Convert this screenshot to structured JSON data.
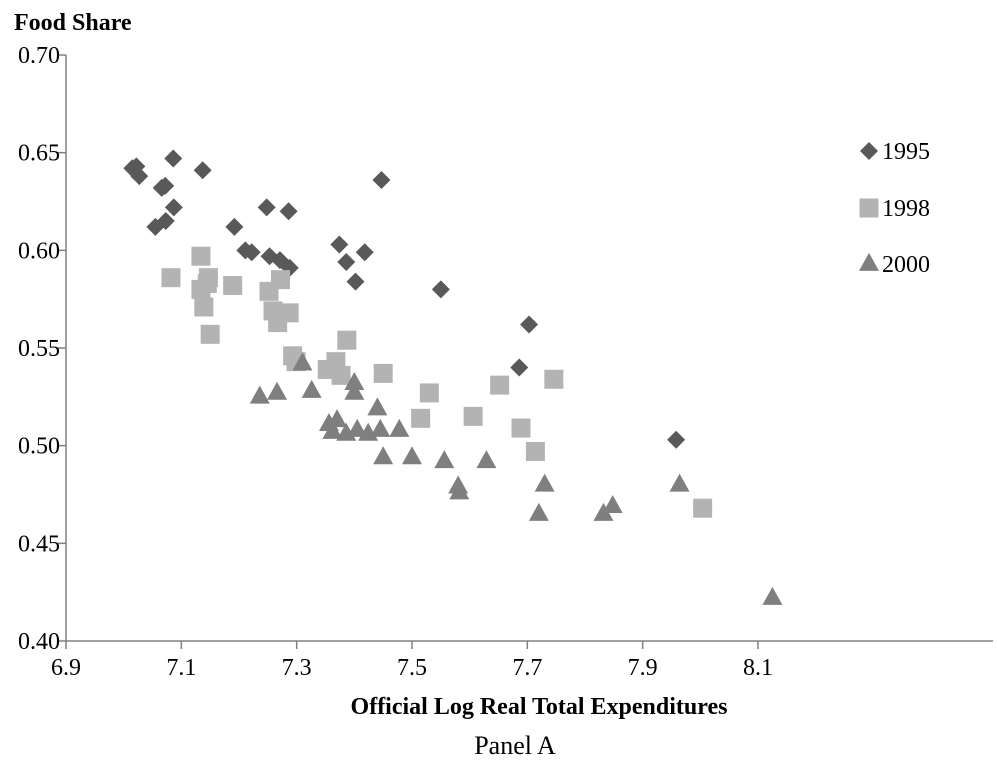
{
  "chart_data": {
    "type": "scatter",
    "ylabel": "Food Share",
    "xlabel": "Official Log Real Total Expenditures",
    "caption": "Panel A",
    "xlim": [
      6.9,
      8.2
    ],
    "ylim": [
      0.4,
      0.7
    ],
    "x_ticks": [
      6.9,
      7.1,
      7.3,
      7.5,
      7.7,
      7.9,
      8.1
    ],
    "x_tick_labels": [
      "6.9",
      "7.1",
      "7.3",
      "7.5",
      "7.7",
      "7.9",
      "8.1"
    ],
    "y_ticks": [
      0.4,
      0.45,
      0.5,
      0.55,
      0.6,
      0.65,
      0.7
    ],
    "y_tick_labels": [
      "0.40",
      "0.45",
      "0.50",
      "0.55",
      "0.60",
      "0.65",
      "0.70"
    ],
    "grid": false,
    "legend_position": "right",
    "series": [
      {
        "name": "1995",
        "marker": "diamond",
        "color": "#595959",
        "points": [
          [
            7.015,
            0.642
          ],
          [
            7.022,
            0.643
          ],
          [
            7.027,
            0.638
          ],
          [
            7.066,
            0.632
          ],
          [
            7.072,
            0.633
          ],
          [
            7.086,
            0.647
          ],
          [
            7.137,
            0.641
          ],
          [
            7.055,
            0.612
          ],
          [
            7.073,
            0.615
          ],
          [
            7.087,
            0.622
          ],
          [
            7.192,
            0.612
          ],
          [
            7.211,
            0.6
          ],
          [
            7.222,
            0.599
          ],
          [
            7.248,
            0.622
          ],
          [
            7.253,
            0.597
          ],
          [
            7.271,
            0.595
          ],
          [
            7.286,
            0.62
          ],
          [
            7.288,
            0.591
          ],
          [
            7.374,
            0.603
          ],
          [
            7.386,
            0.594
          ],
          [
            7.402,
            0.584
          ],
          [
            7.418,
            0.599
          ],
          [
            7.447,
            0.636
          ],
          [
            7.55,
            0.58
          ],
          [
            7.703,
            0.562
          ],
          [
            7.686,
            0.54
          ],
          [
            7.958,
            0.503
          ]
        ]
      },
      {
        "name": "1998",
        "marker": "square",
        "color": "#b3b3b3",
        "points": [
          [
            7.082,
            0.586
          ],
          [
            7.134,
            0.597
          ],
          [
            7.134,
            0.58
          ],
          [
            7.139,
            0.571
          ],
          [
            7.147,
            0.586
          ],
          [
            7.145,
            0.583
          ],
          [
            7.15,
            0.557
          ],
          [
            7.189,
            0.582
          ],
          [
            7.252,
            0.579
          ],
          [
            7.259,
            0.569
          ],
          [
            7.267,
            0.563
          ],
          [
            7.272,
            0.585
          ],
          [
            7.287,
            0.568
          ],
          [
            7.293,
            0.546
          ],
          [
            7.299,
            0.543
          ],
          [
            7.353,
            0.539
          ],
          [
            7.368,
            0.543
          ],
          [
            7.377,
            0.536
          ],
          [
            7.387,
            0.554
          ],
          [
            7.45,
            0.537
          ],
          [
            7.515,
            0.514
          ],
          [
            7.53,
            0.527
          ],
          [
            7.606,
            0.515
          ],
          [
            7.652,
            0.531
          ],
          [
            7.689,
            0.509
          ],
          [
            7.714,
            0.497
          ],
          [
            7.746,
            0.534
          ],
          [
            8.004,
            0.468
          ]
        ]
      },
      {
        "name": "2000",
        "marker": "triangle",
        "color": "#7f7f7f",
        "points": [
          [
            7.236,
            0.525
          ],
          [
            7.266,
            0.527
          ],
          [
            7.31,
            0.542
          ],
          [
            7.326,
            0.528
          ],
          [
            7.356,
            0.511
          ],
          [
            7.362,
            0.507
          ],
          [
            7.37,
            0.513
          ],
          [
            7.386,
            0.506
          ],
          [
            7.4,
            0.532
          ],
          [
            7.4,
            0.527
          ],
          [
            7.405,
            0.508
          ],
          [
            7.424,
            0.506
          ],
          [
            7.44,
            0.519
          ],
          [
            7.445,
            0.508
          ],
          [
            7.45,
            0.494
          ],
          [
            7.478,
            0.508
          ],
          [
            7.5,
            0.494
          ],
          [
            7.556,
            0.492
          ],
          [
            7.58,
            0.479
          ],
          [
            7.582,
            0.476
          ],
          [
            7.629,
            0.492
          ],
          [
            7.72,
            0.465
          ],
          [
            7.73,
            0.48
          ],
          [
            7.832,
            0.465
          ],
          [
            7.848,
            0.469
          ],
          [
            7.964,
            0.48
          ],
          [
            8.125,
            0.422
          ]
        ]
      }
    ]
  }
}
